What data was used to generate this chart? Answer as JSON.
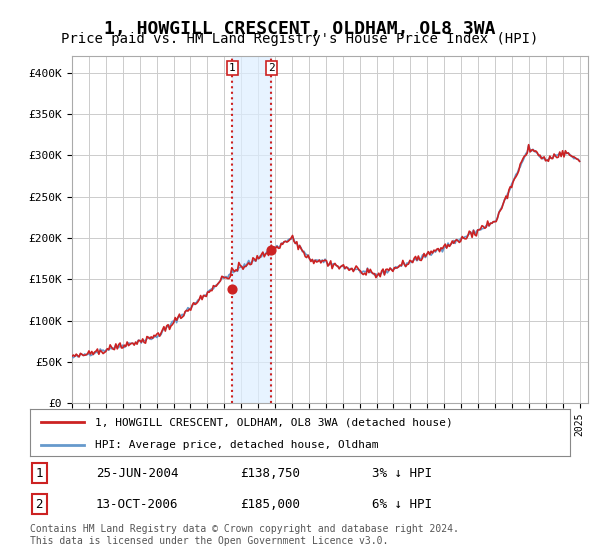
{
  "title": "1, HOWGILL CRESCENT, OLDHAM, OL8 3WA",
  "subtitle": "Price paid vs. HM Land Registry's House Price Index (HPI)",
  "title_fontsize": 13,
  "subtitle_fontsize": 10,
  "ylim": [
    0,
    420000
  ],
  "yticks": [
    0,
    50000,
    100000,
    150000,
    200000,
    250000,
    300000,
    350000,
    400000
  ],
  "ytick_labels": [
    "£0",
    "£50K",
    "£100K",
    "£150K",
    "£200K",
    "£250K",
    "£300K",
    "£350K",
    "£400K"
  ],
  "hpi_color": "#6699cc",
  "price_color": "#cc2222",
  "sale1_date": "25-JUN-2004",
  "sale1_price": 138750,
  "sale1_label": "3% ↓ HPI",
  "sale1_num": "1",
  "sale2_date": "13-OCT-2006",
  "sale2_price": 185000,
  "sale2_label": "6% ↓ HPI",
  "sale2_num": "2",
  "legend1": "1, HOWGILL CRESCENT, OLDHAM, OL8 3WA (detached house)",
  "legend2": "HPI: Average price, detached house, Oldham",
  "footer": "Contains HM Land Registry data © Crown copyright and database right 2024.\nThis data is licensed under the Open Government Licence v3.0.",
  "background_color": "#ffffff",
  "grid_color": "#cccccc",
  "shaded_color": "#ddeeff",
  "marker_color_1": "#cc2222",
  "marker_color_2": "#cc2222"
}
